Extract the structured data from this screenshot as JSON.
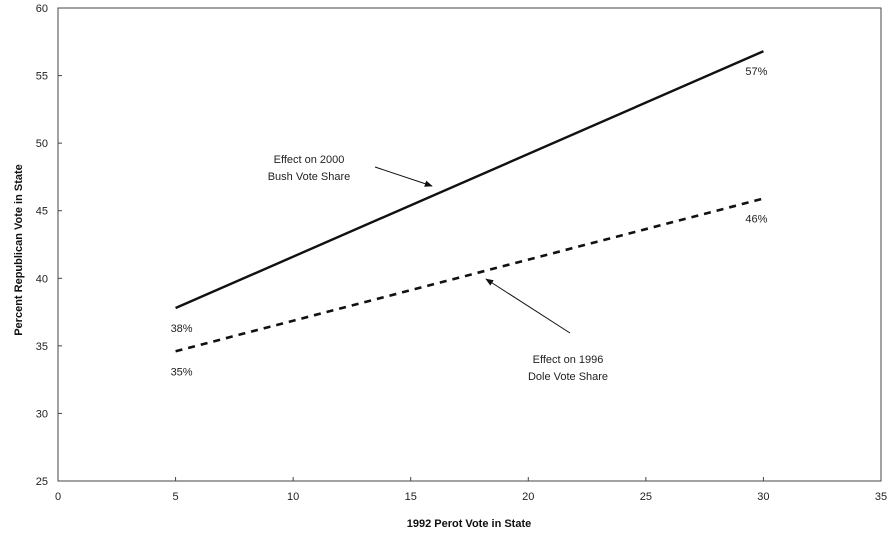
{
  "chart_data": {
    "type": "line",
    "title": "",
    "xlabel": "1992 Perot Vote in State",
    "ylabel": "Percent Republican Vote in State",
    "xlim": [
      0,
      35
    ],
    "ylim": [
      25,
      60
    ],
    "xticks": [
      0,
      5,
      10,
      15,
      20,
      25,
      30,
      35
    ],
    "yticks": [
      25,
      30,
      35,
      40,
      45,
      50,
      55,
      60
    ],
    "grid": false,
    "series": [
      {
        "x": [
          5,
          30
        ],
        "y": [
          37.8,
          56.8
        ],
        "style": "solid",
        "color": "#111111",
        "labels": [
          "38%",
          "57%"
        ]
      },
      {
        "x": [
          5,
          30
        ],
        "y": [
          34.6,
          45.9
        ],
        "style": "dashed",
        "color": "#111111",
        "labels": [
          "35%",
          "46%"
        ]
      }
    ],
    "annotations": [
      {
        "lines": [
          "Effect on 2000",
          "Bush Vote Share"
        ]
      },
      {
        "lines": [
          "Effect on 1996",
          "Dole Vote Share"
        ]
      }
    ]
  }
}
